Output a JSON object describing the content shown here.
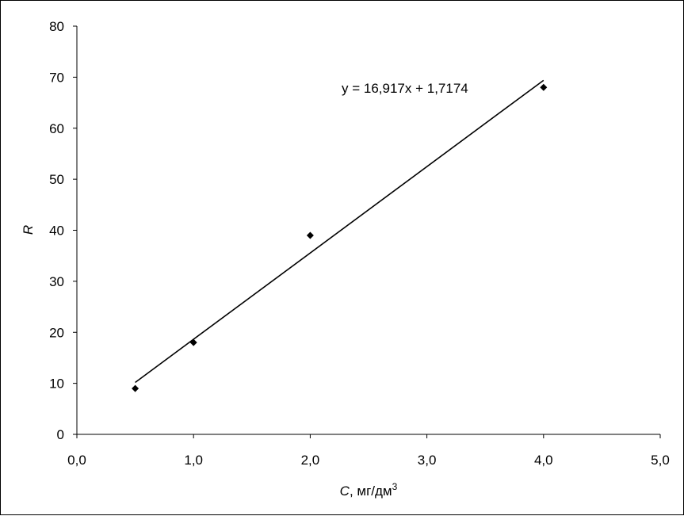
{
  "chart_data": {
    "type": "scatter",
    "xlabel": "C",
    "xlabel_unit": ", мг/дм",
    "xlabel_unit_sup": "3",
    "ylabel": "R",
    "xlim": [
      0,
      5
    ],
    "ylim": [
      0,
      80
    ],
    "x_ticks": [
      "0,0",
      "1,0",
      "2,0",
      "3,0",
      "4,0",
      "5,0"
    ],
    "y_ticks": [
      "0",
      "10",
      "20",
      "30",
      "40",
      "50",
      "60",
      "70",
      "80"
    ],
    "grid": false,
    "legend": "none",
    "series": [
      {
        "marker": "diamond",
        "color": "#000000",
        "points": [
          {
            "x": 0.5,
            "y": 9
          },
          {
            "x": 1.0,
            "y": 18
          },
          {
            "x": 2.0,
            "y": 39
          },
          {
            "x": 4.0,
            "y": 68
          }
        ]
      }
    ],
    "trendline": {
      "type": "linear",
      "slope": 16.917,
      "intercept": 1.7174,
      "x_range": [
        0.5,
        4.0
      ],
      "equation_label": "y = 16,917x + 1,7174"
    }
  }
}
